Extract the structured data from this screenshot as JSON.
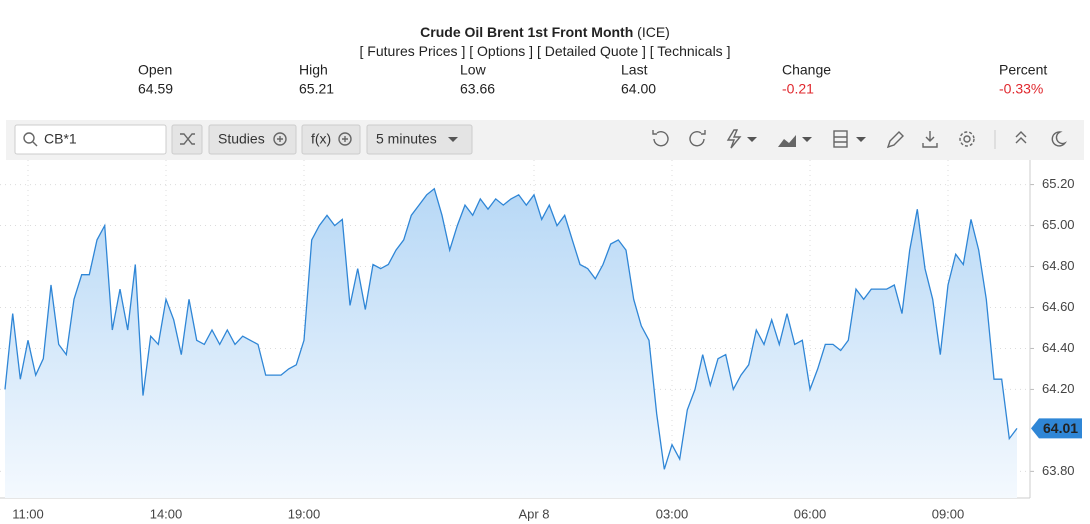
{
  "header": {
    "title": "Crude Oil Brent 1st Front Month",
    "exchange": "(ICE)",
    "links": [
      "[ Futures Prices ]",
      "[ Options ]",
      "[ Detailed Quote ]",
      "[ Technicals ]"
    ]
  },
  "quote": {
    "labels": [
      "Open",
      "High",
      "Low",
      "Last",
      "Change",
      "Percent"
    ],
    "values": [
      "64.59",
      "65.21",
      "63.66",
      "64.00",
      "-0.21",
      "-0.33%"
    ]
  },
  "toolbar": {
    "symbol": "CB*1",
    "studies": "Studies",
    "fx": "f(x)",
    "interval": "5 minutes"
  },
  "chart_data": {
    "type": "area",
    "color": "#2f86d6",
    "grid": true,
    "categories": [
      null,
      null,
      null,
      "11:00",
      null,
      null,
      null,
      null,
      null,
      null,
      null,
      null,
      null,
      null,
      null,
      null,
      null,
      null,
      null,
      null,
      null,
      "14:00",
      null,
      null,
      null,
      null,
      null,
      null,
      null,
      null,
      null,
      null,
      null,
      null,
      null,
      null,
      null,
      null,
      null,
      "19:00",
      null,
      null,
      null,
      null,
      null,
      null,
      null,
      null,
      null,
      null,
      null,
      null,
      null,
      null,
      null,
      null,
      null,
      null,
      null,
      null,
      null,
      null,
      null,
      null,
      null,
      null,
      null,
      null,
      null,
      "Apr 8",
      null,
      null,
      null,
      null,
      null,
      null,
      null,
      null,
      null,
      null,
      null,
      null,
      null,
      null,
      null,
      null,
      null,
      "03:00",
      null,
      null,
      null,
      null,
      null,
      null,
      null,
      null,
      null,
      null,
      null,
      null,
      null,
      null,
      null,
      null,
      null,
      "06:00",
      null,
      null,
      null,
      null,
      null,
      null,
      null,
      null,
      null,
      null,
      null,
      null,
      null,
      null,
      null,
      null,
      null,
      "09:00",
      null,
      null,
      null,
      null,
      null,
      null,
      null,
      null,
      null
    ],
    "series": [
      {
        "values": [
          64.2,
          64.57,
          64.25,
          64.44,
          64.27,
          64.35,
          64.71,
          64.42,
          64.37,
          64.64,
          64.76,
          64.76,
          64.93,
          65.0,
          64.49,
          64.69,
          64.49,
          64.81,
          64.17,
          64.46,
          64.42,
          64.64,
          64.54,
          64.37,
          64.64,
          64.44,
          64.42,
          64.49,
          64.42,
          64.49,
          64.42,
          64.46,
          64.44,
          64.42,
          64.27,
          64.27,
          64.27,
          64.3,
          64.32,
          64.44,
          64.93,
          65.0,
          65.05,
          65.0,
          65.03,
          64.61,
          64.79,
          64.59,
          64.81,
          64.79,
          64.81,
          64.88,
          64.93,
          65.05,
          65.1,
          65.15,
          65.18,
          65.05,
          64.88,
          65.0,
          65.1,
          65.05,
          65.13,
          65.08,
          65.13,
          65.1,
          65.13,
          65.15,
          65.1,
          65.15,
          65.03,
          65.1,
          65.0,
          65.05,
          64.93,
          64.81,
          64.79,
          64.74,
          64.81,
          64.91,
          64.93,
          64.88,
          64.64,
          64.51,
          64.44,
          64.08,
          63.81,
          63.93,
          63.86,
          64.1,
          64.2,
          64.37,
          64.22,
          64.35,
          64.37,
          64.2,
          64.27,
          64.32,
          64.49,
          64.42,
          64.54,
          64.42,
          64.57,
          64.42,
          64.44,
          64.2,
          64.3,
          64.42,
          64.42,
          64.39,
          64.44,
          64.69,
          64.64,
          64.69,
          64.69,
          64.69,
          64.71,
          64.57,
          64.88,
          65.08,
          64.79,
          64.64,
          64.37,
          64.71,
          64.86,
          64.81,
          65.03,
          64.88,
          64.64,
          64.25,
          64.25,
          63.96,
          64.01
        ]
      }
    ],
    "last_value": 64.01,
    "ylim": [
      63.67,
      65.32
    ],
    "yticks": [
      {
        "value": 63.8,
        "label": "63.80"
      },
      {
        "value": 64.2,
        "label": "64.20"
      },
      {
        "value": 64.4,
        "label": "64.40"
      },
      {
        "value": 64.6,
        "label": "64.60"
      },
      {
        "value": 64.8,
        "label": "64.80"
      },
      {
        "value": 65.0,
        "label": "65.00"
      },
      {
        "value": 65.2,
        "label": "65.20"
      }
    ]
  }
}
